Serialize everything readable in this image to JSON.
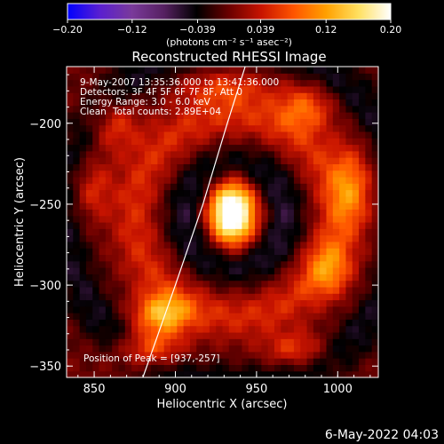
{
  "chart_data": {
    "type": "heatmap",
    "title": "Reconstructed RHESSI Image",
    "xlabel": "Heliocentric X (arcsec)",
    "ylabel": "Heliocentric Y (arcsec)",
    "xlim": [
      833,
      1025
    ],
    "ylim": [
      -357,
      -165
    ],
    "xticks": [
      850,
      900,
      950,
      1000
    ],
    "yticks": [
      -350,
      -300,
      -250,
      -200
    ],
    "colorbar": {
      "units": "(photons cm⁻² s⁻¹ asec⁻²)",
      "range": [
        -0.2,
        0.2
      ],
      "ticks": [
        "-0.20",
        "-0.12",
        "-0.039",
        "0.039",
        "0.12",
        "0.20"
      ],
      "colors": [
        "#0000ff",
        "#5a1fd0",
        "#7a3a9a",
        "#552060",
        "#000000",
        "#6a0000",
        "#c81400",
        "#ff5500",
        "#ffa000",
        "#ffe060",
        "#ffffff"
      ]
    },
    "annotations": [
      "9-May-2007 13:35:36.000 to 13:41:36.000",
      "Detectors: 3F 4F 5F 6F 7F 8F, Att 0",
      "Energy Range: 3.0 - 6.0 keV",
      "Clean",
      "Total counts: 2.89E+04",
      "Position of Peak = [937,-257]"
    ],
    "peak": {
      "x": 937,
      "y": -257
    },
    "limb_curve": [
      [
        880,
        -357
      ],
      [
        900,
        -300
      ],
      [
        917,
        -250
      ],
      [
        932,
        -200
      ],
      [
        943,
        -165
      ]
    ],
    "sources": [
      {
        "name": "core",
        "x": 935,
        "y": -255,
        "sx": 10,
        "sy": 14,
        "amp": 0.26
      },
      {
        "name": "left-lobe",
        "x": 892,
        "y": -318,
        "sx": 12,
        "sy": 9,
        "amp": 0.13
      },
      {
        "name": "bottom-left",
        "x": 883,
        "y": -340,
        "sx": 14,
        "sy": 8,
        "amp": 0.1
      },
      {
        "name": "upper-left",
        "x": 862,
        "y": -200,
        "sx": 11,
        "sy": 12,
        "amp": 0.07
      },
      {
        "name": "left-edge",
        "x": 848,
        "y": -240,
        "sx": 9,
        "sy": 14,
        "amp": 0.06
      },
      {
        "name": "top",
        "x": 930,
        "y": -178,
        "sx": 20,
        "sy": 8,
        "amp": 0.06
      },
      {
        "name": "top-right",
        "x": 980,
        "y": -190,
        "sx": 12,
        "sy": 10,
        "amp": 0.08
      },
      {
        "name": "right-edge",
        "x": 1008,
        "y": -240,
        "sx": 9,
        "sy": 18,
        "amp": 0.09
      },
      {
        "name": "right-lower",
        "x": 995,
        "y": -290,
        "sx": 10,
        "sy": 12,
        "amp": 0.08
      },
      {
        "name": "bottom-right",
        "x": 975,
        "y": -340,
        "sx": 14,
        "sy": 8,
        "amp": 0.07
      }
    ],
    "ring_radius_arcsec": 62,
    "ring_amp": 0.05,
    "inner_negative": -0.06,
    "outer_negative": -0.05
  },
  "footer_timestamp": "6-May-2022 04:03"
}
